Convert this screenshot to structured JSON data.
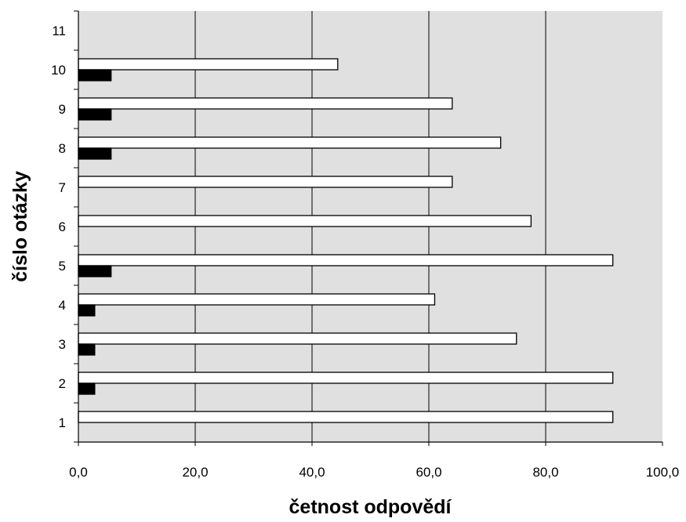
{
  "chart_data": {
    "type": "bar",
    "orientation": "horizontal",
    "categories": [
      "1",
      "2",
      "3",
      "4",
      "5",
      "6",
      "7",
      "8",
      "9",
      "10",
      "11"
    ],
    "series": [
      {
        "values": [
          91.5,
          91.5,
          75.0,
          61.0,
          91.5,
          77.5,
          64.0,
          72.3,
          64.0,
          44.4,
          null
        ],
        "color": "#ffffff"
      },
      {
        "values": [
          null,
          2.8,
          2.8,
          2.8,
          5.6,
          null,
          null,
          5.6,
          5.6,
          5.6,
          null
        ],
        "color": "#000000"
      }
    ],
    "xlabel": "četnost odpovědí",
    "ylabel": "číslo otázky",
    "xlim": [
      0,
      100
    ],
    "xticks": [
      "0,0",
      "20,0",
      "40,0",
      "60,0",
      "80,0",
      "100,0"
    ],
    "xtick_values": [
      0,
      20,
      40,
      60,
      80,
      100
    ],
    "grid": "vertical",
    "plot_background": "#e0e0e0",
    "legend": "none"
  }
}
